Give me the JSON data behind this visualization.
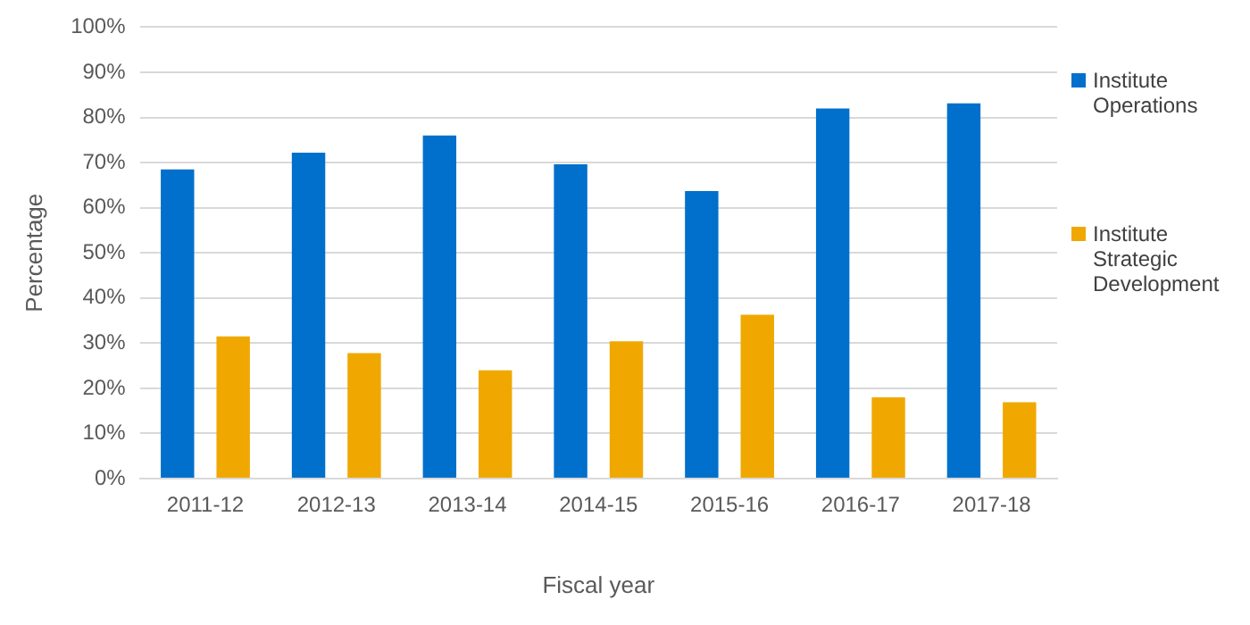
{
  "chart_data": {
    "type": "bar",
    "xlabel": "Fiscal year",
    "ylabel": "Percentage",
    "categories": [
      "2011-12",
      "2012-13",
      "2013-14",
      "2014-15",
      "2015-16",
      "2016-17",
      "2017-18"
    ],
    "series": [
      {
        "name": "Institute Operations",
        "color": "#0070cc",
        "values": [
          68.5,
          72.2,
          76,
          69.6,
          63.7,
          82,
          83.1
        ]
      },
      {
        "name": "Institute Strategic Development",
        "color": "#f0a800",
        "values": [
          31.5,
          27.8,
          24,
          30.4,
          36.3,
          18,
          16.9
        ]
      }
    ],
    "ylim": [
      0,
      100
    ],
    "yticks": [
      {
        "value": 0,
        "label": "0%"
      },
      {
        "value": 10,
        "label": "10%"
      },
      {
        "value": 20,
        "label": "20%"
      },
      {
        "value": 30,
        "label": "30%"
      },
      {
        "value": 40,
        "label": "40%"
      },
      {
        "value": 50,
        "label": "50%"
      },
      {
        "value": 60,
        "label": "60%"
      },
      {
        "value": 70,
        "label": "70%"
      },
      {
        "value": 80,
        "label": "80%"
      },
      {
        "value": 90,
        "label": "90%"
      },
      {
        "value": 100,
        "label": "100%"
      }
    ],
    "grid": "y",
    "legend": "right"
  }
}
